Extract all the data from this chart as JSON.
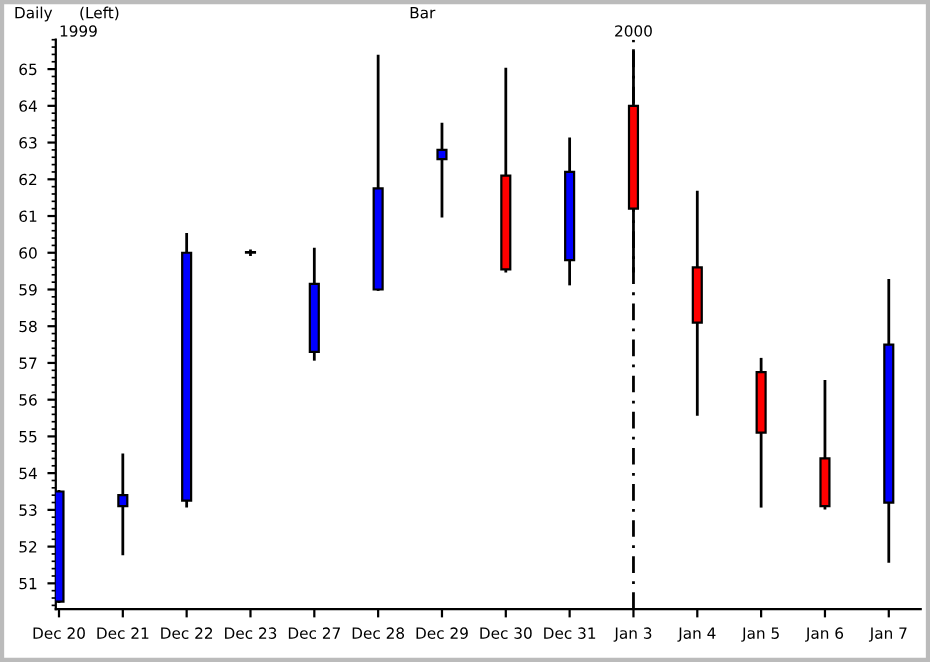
{
  "chart_data": {
    "type": "candlestick",
    "title": "Daily",
    "annotations": [
      "(Left)",
      "Bar",
      "1999",
      "2000"
    ],
    "categories": [
      "Dec 20",
      "Dec 21",
      "Dec 22",
      "Dec 23",
      "Dec 27",
      "Dec 28",
      "Dec 29",
      "Dec 30",
      "Dec 31",
      "Jan 3",
      "Jan 4",
      "Jan 5",
      "Jan 6",
      "Jan 7"
    ],
    "ohlc": [
      [
        50.5,
        53.5,
        50.5,
        53.5
      ],
      [
        53.1,
        54.5,
        51.8,
        53.4
      ],
      [
        53.25,
        60.5,
        53.1,
        60.0
      ],
      [
        60.0,
        60.05,
        59.95,
        60.0
      ],
      [
        57.3,
        60.1,
        57.1,
        59.15
      ],
      [
        59.0,
        65.35,
        59.0,
        61.75
      ],
      [
        62.55,
        63.5,
        61.0,
        62.8
      ],
      [
        62.1,
        65.0,
        59.5,
        59.55
      ],
      [
        59.8,
        63.1,
        59.15,
        62.2
      ],
      [
        64.0,
        65.5,
        59.5,
        61.2
      ],
      [
        59.6,
        61.65,
        55.6,
        58.1
      ],
      [
        56.75,
        57.1,
        53.1,
        55.1
      ],
      [
        54.4,
        56.5,
        53.05,
        53.1
      ],
      [
        53.2,
        59.25,
        51.6,
        57.5
      ]
    ],
    "colors": [
      "#0000ff",
      "#0000ff",
      "#0000ff",
      "#0000ff",
      "#0000ff",
      "#0000ff",
      "#0000ff",
      "#ff0000",
      "#0000ff",
      "#ff0000",
      "#ff0000",
      "#ff0000",
      "#ff0000",
      "#0000ff"
    ],
    "ylim": [
      50.3,
      65.8
    ],
    "yticks": [
      51,
      52,
      53,
      54,
      55,
      56,
      57,
      58,
      59,
      60,
      61,
      62,
      63,
      64,
      65
    ],
    "ref_lines": [
      {
        "axis": "x",
        "value": "Jan 3",
        "color": "#000000",
        "line_style": "dashed"
      }
    ],
    "grid": false
  }
}
